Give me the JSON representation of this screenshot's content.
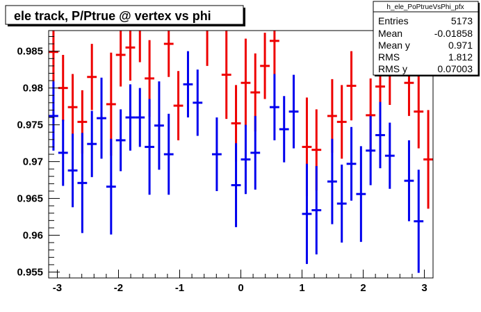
{
  "chart_data": {
    "type": "scatter",
    "title": "ele track, P/Ptrue @ vertex vs phi",
    "xlabel": "",
    "ylabel": "",
    "xlim": [
      -3.1416,
      3.1416
    ],
    "ylim": [
      0.9542,
      0.9878
    ],
    "xticks": [
      -3,
      -2,
      -1,
      0,
      1,
      2,
      3
    ],
    "yticks": [
      0.955,
      0.96,
      0.965,
      0.97,
      0.975,
      0.98,
      0.985
    ],
    "ytick_labels": [
      "0.955",
      "0.96",
      "0.965",
      "0.97",
      "0.975",
      "0.98",
      "0.985"
    ],
    "bin_half_width": 0.0785,
    "grid": false,
    "stats_box": {
      "name": "h_ele_PoPtrueVsPhi_pfx",
      "rows": [
        {
          "label": "Entries",
          "value": "5173"
        },
        {
          "label": "Mean",
          "value": "-0.01858"
        },
        {
          "label": "Mean y",
          "value": "0.971"
        },
        {
          "label": "RMS",
          "value": "1.812"
        },
        {
          "label": "RMS y",
          "value": "0.07003"
        }
      ]
    },
    "series": [
      {
        "color": "#ee0000",
        "points": [
          {
            "x": -3.063,
            "y": 0.9849,
            "err": 0.004
          },
          {
            "x": -2.906,
            "y": 0.98,
            "err": 0.0045
          },
          {
            "x": -2.749,
            "y": 0.9774,
            "err": 0.0045
          },
          {
            "x": -2.592,
            "y": 0.9754,
            "err": 0.0043
          },
          {
            "x": -2.435,
            "y": 0.9815,
            "err": 0.0045
          },
          {
            "x": -2.121,
            "y": 0.9778,
            "err": 0.007
          },
          {
            "x": -1.964,
            "y": 0.9845,
            "err": 0.0043
          },
          {
            "x": -1.807,
            "y": 0.9855,
            "err": 0.0045
          },
          {
            "x": -1.65,
            "y": 0.988,
            "err": 0.0045
          },
          {
            "x": -1.493,
            "y": 0.9813,
            "err": 0.0052
          },
          {
            "x": -1.179,
            "y": 0.986,
            "err": 0.0045
          },
          {
            "x": -1.022,
            "y": 0.9776,
            "err": 0.0047
          },
          {
            "x": -0.55,
            "y": 0.988,
            "err": 0.005
          },
          {
            "x": -0.236,
            "y": 0.9818,
            "err": 0.006
          },
          {
            "x": -0.079,
            "y": 0.9752,
            "err": 0.0052
          },
          {
            "x": 0.079,
            "y": 0.9807,
            "err": 0.006
          },
          {
            "x": 0.236,
            "y": 0.9794,
            "err": 0.0053
          },
          {
            "x": 0.393,
            "y": 0.983,
            "err": 0.0045
          },
          {
            "x": 0.55,
            "y": 0.9864,
            "err": 0.0045
          },
          {
            "x": 1.079,
            "y": 0.972,
            "err": 0.0067
          },
          {
            "x": 1.236,
            "y": 0.9716,
            "err": 0.0055
          },
          {
            "x": 1.493,
            "y": 0.9762,
            "err": 0.005
          },
          {
            "x": 1.65,
            "y": 0.9754,
            "err": 0.005
          },
          {
            "x": 1.807,
            "y": 0.9803,
            "err": 0.0047
          },
          {
            "x": 2.121,
            "y": 0.9763,
            "err": 0.005
          },
          {
            "x": 2.278,
            "y": 0.9802,
            "err": 0.0047
          },
          {
            "x": 2.435,
            "y": 0.9822,
            "err": 0.0045
          },
          {
            "x": 2.749,
            "y": 0.9807,
            "err": 0.0045
          },
          {
            "x": 2.906,
            "y": 0.9768,
            "err": 0.005
          },
          {
            "x": 3.063,
            "y": 0.9703,
            "err": 0.0067
          }
        ]
      },
      {
        "color": "#0000ee",
        "points": [
          {
            "x": -3.063,
            "y": 0.9762,
            "err": 0.0047
          },
          {
            "x": -2.906,
            "y": 0.9712,
            "err": 0.0045
          },
          {
            "x": -2.749,
            "y": 0.9688,
            "err": 0.005
          },
          {
            "x": -2.592,
            "y": 0.9671,
            "err": 0.0068
          },
          {
            "x": -2.435,
            "y": 0.9724,
            "err": 0.0045
          },
          {
            "x": -2.278,
            "y": 0.9759,
            "err": 0.0055
          },
          {
            "x": -2.121,
            "y": 0.9666,
            "err": 0.0065
          },
          {
            "x": -1.964,
            "y": 0.9729,
            "err": 0.0042
          },
          {
            "x": -1.807,
            "y": 0.976,
            "err": 0.0045
          },
          {
            "x": -1.65,
            "y": 0.976,
            "err": 0.004
          },
          {
            "x": -1.493,
            "y": 0.972,
            "err": 0.0065
          },
          {
            "x": -1.336,
            "y": 0.9749,
            "err": 0.006
          },
          {
            "x": -1.179,
            "y": 0.971,
            "err": 0.0055
          },
          {
            "x": -0.864,
            "y": 0.9805,
            "err": 0.0045
          },
          {
            "x": -0.707,
            "y": 0.978,
            "err": 0.0045
          },
          {
            "x": -0.393,
            "y": 0.971,
            "err": 0.005
          },
          {
            "x": -0.079,
            "y": 0.9668,
            "err": 0.0057
          },
          {
            "x": 0.079,
            "y": 0.9703,
            "err": 0.0047
          },
          {
            "x": 0.236,
            "y": 0.9712,
            "err": 0.005
          },
          {
            "x": 0.55,
            "y": 0.9774,
            "err": 0.0045
          },
          {
            "x": 0.707,
            "y": 0.9744,
            "err": 0.0045
          },
          {
            "x": 0.864,
            "y": 0.9768,
            "err": 0.005
          },
          {
            "x": 1.079,
            "y": 0.9629,
            "err": 0.0068
          },
          {
            "x": 1.236,
            "y": 0.9634,
            "err": 0.006
          },
          {
            "x": 1.493,
            "y": 0.9673,
            "err": 0.0058
          },
          {
            "x": 1.65,
            "y": 0.9643,
            "err": 0.0053
          },
          {
            "x": 1.807,
            "y": 0.9697,
            "err": 0.005
          },
          {
            "x": 1.964,
            "y": 0.9656,
            "err": 0.0065
          },
          {
            "x": 2.121,
            "y": 0.9715,
            "err": 0.0047
          },
          {
            "x": 2.278,
            "y": 0.9736,
            "err": 0.0045
          },
          {
            "x": 2.435,
            "y": 0.9708,
            "err": 0.0045
          },
          {
            "x": 2.749,
            "y": 0.9674,
            "err": 0.0055
          },
          {
            "x": 2.906,
            "y": 0.9619,
            "err": 0.007
          }
        ]
      }
    ]
  }
}
